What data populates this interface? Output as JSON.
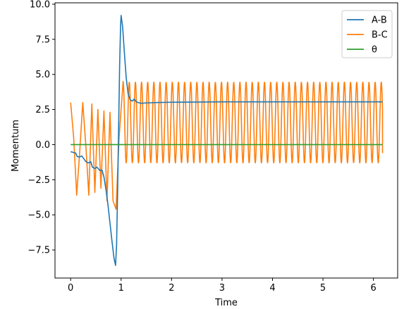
{
  "chart_data": {
    "type": "line",
    "title": "",
    "xlabel": "Time",
    "ylabel": "Momentum",
    "xlim": [
      -0.31,
      6.48
    ],
    "ylim": [
      -9.5,
      10.1
    ],
    "xticks": [
      0,
      1,
      2,
      3,
      4,
      5,
      6
    ],
    "yticks": [
      -7.5,
      -5.0,
      -2.5,
      0.0,
      2.5,
      5.0,
      7.5,
      10.0
    ],
    "ytick_labels": [
      "−7.5",
      "−5.0",
      "−2.5",
      "0.0",
      "2.5",
      "5.0",
      "7.5",
      "10.0"
    ],
    "grid": false,
    "legend_position": "top-right",
    "series": [
      {
        "name": "A-B",
        "color": "#1f77b4",
        "x": [
          0.0,
          0.05,
          0.1,
          0.13,
          0.18,
          0.22,
          0.3,
          0.35,
          0.4,
          0.43,
          0.48,
          0.52,
          0.58,
          0.62,
          0.66,
          0.7,
          0.74,
          0.78,
          0.82,
          0.86,
          0.89,
          0.91,
          0.93,
          0.95,
          0.97,
          0.99,
          1.0,
          1.03,
          1.06,
          1.1,
          1.14,
          1.18,
          1.22,
          1.26,
          1.3,
          1.35,
          1.4,
          1.5,
          1.7,
          2.0,
          3.0,
          4.0,
          5.0,
          6.0,
          6.18
        ],
        "y": [
          -0.5,
          -0.55,
          -0.6,
          -0.85,
          -0.88,
          -0.8,
          -1.2,
          -1.3,
          -1.22,
          -1.6,
          -1.7,
          -1.6,
          -1.85,
          -1.8,
          -2.3,
          -3.2,
          -4.3,
          -5.6,
          -6.9,
          -8.1,
          -8.6,
          -7.2,
          -3.5,
          1.0,
          5.5,
          8.5,
          9.2,
          8.4,
          6.8,
          4.8,
          3.6,
          3.2,
          3.1,
          3.25,
          3.05,
          2.98,
          2.95,
          2.97,
          3.0,
          3.02,
          3.05,
          3.05,
          3.05,
          3.05,
          3.05
        ]
      },
      {
        "name": "B-C",
        "color": "#ff7f0e",
        "x": [
          0.0,
          0.06,
          0.12,
          0.18,
          0.24,
          0.3,
          0.36,
          0.42,
          0.48,
          0.54,
          0.6,
          0.66,
          0.72,
          0.78,
          0.84,
          0.9,
          0.96,
          1.04
        ],
        "y": [
          3.0,
          0.5,
          -3.6,
          -0.5,
          3.0,
          0.0,
          -3.6,
          2.9,
          -3.4,
          2.5,
          -3.1,
          2.4,
          -4.0,
          2.3,
          -4.0,
          -4.6,
          0.5,
          4.5
        ],
        "period": 0.1218,
        "peak": 4.45,
        "trough": -1.3,
        "t_start": 1.04,
        "t_end": 6.18,
        "y_end": -0.6
      },
      {
        "name": "θ",
        "color": "#2ca02c",
        "x": [
          0.0,
          6.18
        ],
        "y": [
          0.0,
          0.0
        ]
      }
    ]
  }
}
